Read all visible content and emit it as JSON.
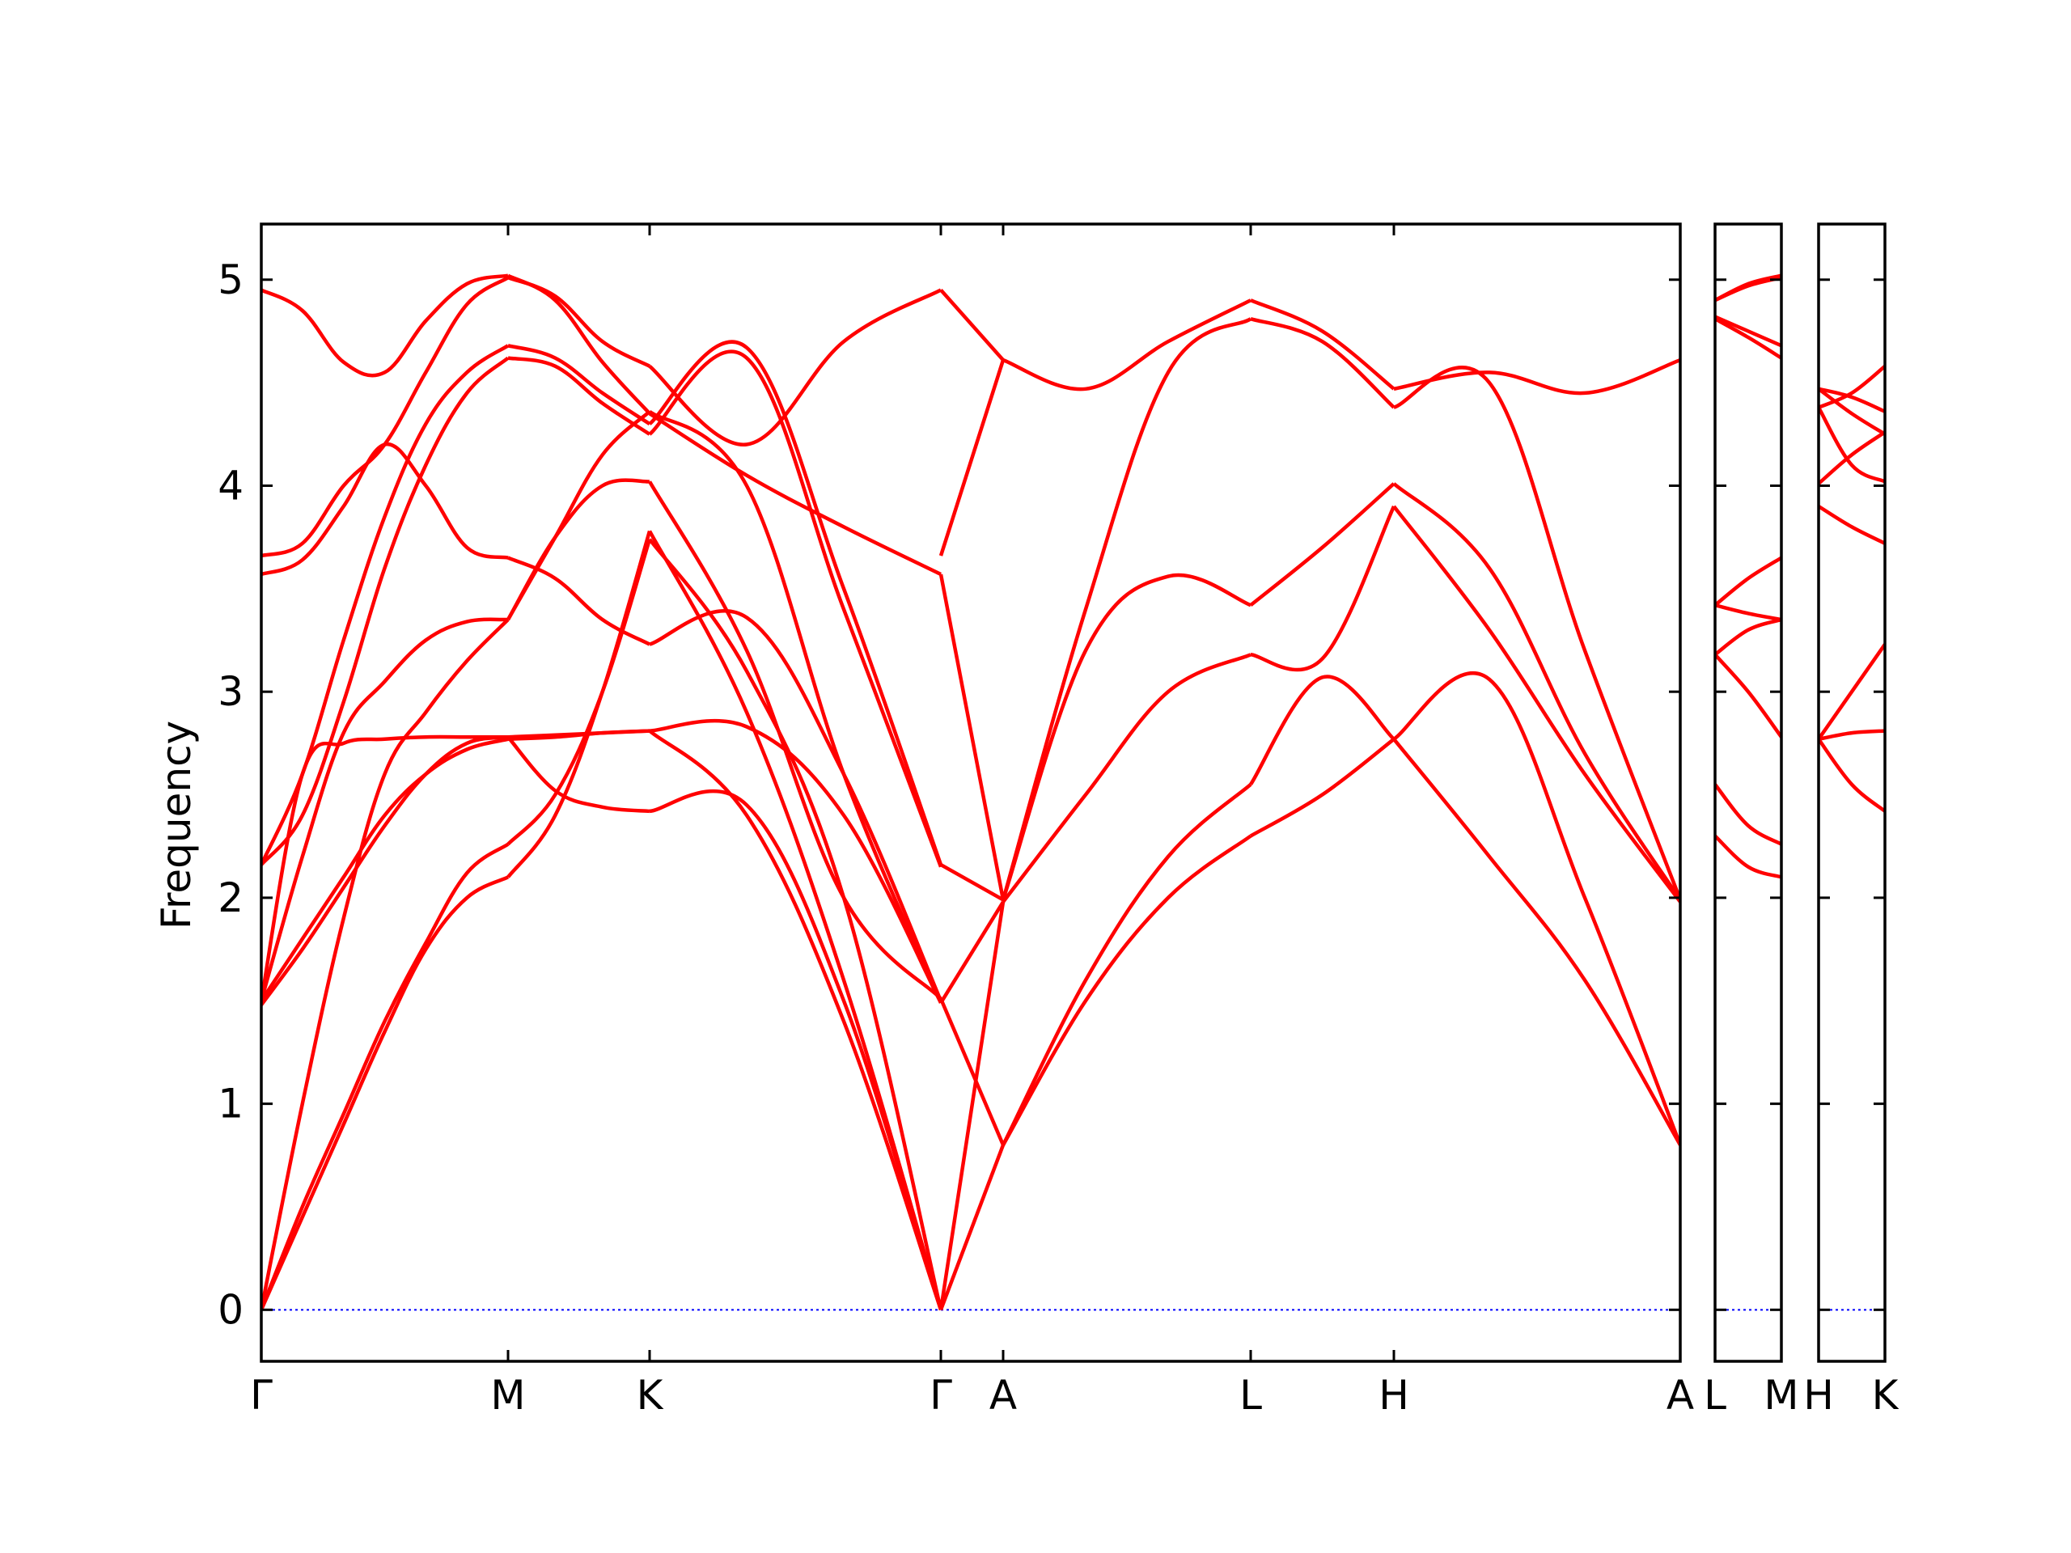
{
  "chart_data": {
    "type": "line",
    "title": "",
    "xlabel": "",
    "ylabel": "Frequency",
    "ylim": [
      -0.25,
      5.27
    ],
    "yticks": [
      0,
      1,
      2,
      3,
      4,
      5
    ],
    "ytick_labels": [
      "0",
      "1",
      "2",
      "3",
      "4",
      "5"
    ],
    "grid": false,
    "legend": "none",
    "colors": {
      "bands": "#ff0000",
      "zero_line": "#0000ff",
      "frame": "#000000"
    },
    "panels": [
      {
        "path": [
          "Γ",
          "M",
          "K",
          "Γ",
          "A",
          "L",
          "H",
          "A"
        ],
        "segments": [
          {
            "from": "Γ",
            "to": "M",
            "bands": [
              [
                0,
                0.45,
                0.9,
                1.35,
                1.75,
                2.0,
                2.1
              ],
              [
                0,
                0.5,
                0.95,
                1.4,
                1.78,
                2.12,
                2.26
              ],
              [
                1.48,
                1.75,
                2.05,
                2.35,
                2.6,
                2.75,
                2.78
              ],
              [
                1.5,
                1.8,
                2.1,
                2.4,
                2.6,
                2.72,
                2.77
              ],
              [
                1.5,
                2.6,
                2.75,
                2.77,
                2.78,
                2.78,
                2.78
              ],
              [
                0,
                1.0,
                1.9,
                2.6,
                2.9,
                3.15,
                3.35
              ],
              [
                1.5,
                2.2,
                2.8,
                3.05,
                3.25,
                3.34,
                3.35
              ],
              [
                2.16,
                2.4,
                2.95,
                3.6,
                4.1,
                4.45,
                4.62
              ],
              [
                2.16,
                2.6,
                3.25,
                3.85,
                4.3,
                4.55,
                4.68
              ],
              [
                3.57,
                3.64,
                3.9,
                4.2,
                4.0,
                3.7,
                3.65
              ],
              [
                3.66,
                3.72,
                4.0,
                4.2,
                4.55,
                4.88,
                5.01
              ],
              [
                4.95,
                4.85,
                4.6,
                4.55,
                4.8,
                4.98,
                5.02
              ]
            ]
          },
          {
            "from": "M",
            "to": "K",
            "bands": [
              [
                2.1,
                2.4,
                3.0,
                3.78
              ],
              [
                2.26,
                2.5,
                3.0,
                3.74
              ],
              [
                2.78,
                2.52,
                2.44,
                2.42
              ],
              [
                2.77,
                2.78,
                2.8,
                2.81
              ],
              [
                2.78,
                2.79,
                2.8,
                2.81
              ],
              [
                3.35,
                3.75,
                4.0,
                4.02
              ],
              [
                3.35,
                3.75,
                4.15,
                4.36
              ],
              [
                4.62,
                4.58,
                4.4,
                4.25
              ],
              [
                4.68,
                4.62,
                4.45,
                4.3
              ],
              [
                3.65,
                3.55,
                3.35,
                3.23
              ],
              [
                5.01,
                4.92,
                4.7,
                4.58
              ],
              [
                5.02,
                4.9,
                4.6,
                4.35
              ]
            ]
          },
          {
            "from": "K",
            "to": "Γ",
            "bands": [
              [
                3.78,
                2.9,
                1.6,
                0
              ],
              [
                3.74,
                3.1,
                2.0,
                0
              ],
              [
                2.42,
                2.45,
                1.5,
                0
              ],
              [
                2.81,
                2.83,
                2.4,
                1.49
              ],
              [
                2.81,
                2.4,
                1.4,
                0
              ],
              [
                4.02,
                3.2,
                2.0,
                1.51
              ],
              [
                4.36,
                4.0,
                2.6,
                1.49
              ],
              [
                4.25,
                4.62,
                3.4,
                2.15
              ],
              [
                4.3,
                4.67,
                3.5,
                2.16
              ],
              [
                3.23,
                3.36,
                2.6,
                1.5
              ],
              [
                4.58,
                4.2,
                4.7,
                4.95
              ],
              [
                4.35,
                4.05,
                3.8,
                3.57
              ]
            ]
          },
          {
            "from": "Γ",
            "to": "A",
            "bands": [
              [
                0,
                1.98
              ],
              [
                0,
                0.8
              ],
              [
                1.49,
                1.98
              ],
              [
                1.51,
                0.8
              ],
              [
                2.16,
                1.99
              ],
              [
                3.57,
                1.99
              ],
              [
                3.66,
                4.61
              ],
              [
                4.95,
                4.61
              ]
            ]
          },
          {
            "from": "A",
            "to": "L",
            "bands": [
              [
                0.8,
                1.5,
                2.0,
                2.3
              ],
              [
                0.8,
                1.6,
                2.2,
                2.55
              ],
              [
                1.98,
                2.5,
                3.0,
                3.18
              ],
              [
                1.99,
                3.2,
                3.56,
                3.42
              ],
              [
                1.99,
                3.4,
                4.55,
                4.81
              ],
              [
                4.61,
                4.47,
                4.7,
                4.9
              ]
            ]
          },
          {
            "from": "L",
            "to": "H",
            "bands": [
              [
                2.3,
                2.5,
                2.77
              ],
              [
                2.55,
                3.07,
                2.77
              ],
              [
                3.18,
                3.16,
                3.9
              ],
              [
                3.42,
                3.7,
                4.01
              ],
              [
                4.81,
                4.7,
                4.38
              ],
              [
                4.9,
                4.75,
                4.47
              ]
            ]
          },
          {
            "from": "H",
            "to": "A",
            "bands": [
              [
                2.77,
                2.2,
                1.6,
                0.8
              ],
              [
                2.77,
                3.06,
                2.0,
                0.8
              ],
              [
                3.9,
                3.3,
                2.6,
                1.98
              ],
              [
                4.01,
                3.6,
                2.7,
                1.99
              ],
              [
                4.38,
                4.5,
                3.2,
                1.99
              ],
              [
                4.47,
                4.55,
                4.45,
                4.61
              ]
            ]
          }
        ]
      },
      {
        "path": [
          "L",
          "M"
        ],
        "segments": [
          {
            "from": "L",
            "to": "M",
            "bands": [
              [
                2.3,
                2.15,
                2.1
              ],
              [
                2.55,
                2.35,
                2.26
              ],
              [
                3.18,
                3.0,
                2.78
              ],
              [
                3.18,
                3.3,
                3.35
              ],
              [
                3.42,
                3.55,
                3.65
              ],
              [
                3.42,
                3.38,
                3.35
              ],
              [
                4.81,
                4.72,
                4.62
              ],
              [
                4.82,
                4.75,
                4.68
              ],
              [
                4.9,
                4.97,
                5.01
              ],
              [
                4.9,
                4.98,
                5.02
              ]
            ]
          }
        ]
      },
      {
        "path": [
          "H",
          "K"
        ],
        "segments": [
          {
            "from": "H",
            "to": "K",
            "bands": [
              [
                2.77,
                2.8,
                2.81
              ],
              [
                2.77,
                2.55,
                2.42
              ],
              [
                2.77,
                3.0,
                3.23
              ],
              [
                3.9,
                3.8,
                3.72
              ],
              [
                4.01,
                4.15,
                4.26
              ],
              [
                4.38,
                4.1,
                4.02
              ],
              [
                4.38,
                4.45,
                4.58
              ],
              [
                4.47,
                4.35,
                4.25
              ],
              [
                4.47,
                4.43,
                4.36
              ]
            ]
          }
        ]
      }
    ]
  }
}
